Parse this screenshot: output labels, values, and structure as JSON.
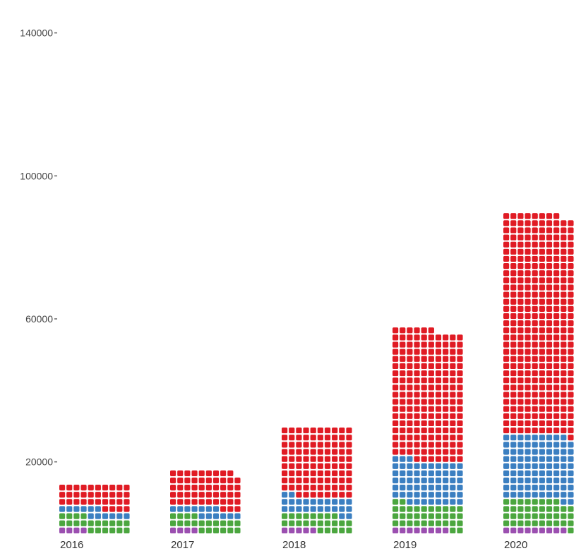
{
  "chart_data": {
    "type": "bar",
    "style": "stacked waffle (dot) bars",
    "title": "",
    "xlabel": "",
    "ylabel": "",
    "categories": [
      "2016",
      "2017",
      "2018",
      "2019",
      "2020"
    ],
    "ylim": [
      0,
      150000
    ],
    "yticks": [
      20000,
      60000,
      100000,
      140000
    ],
    "ytick_labels": [
      "20000",
      "60000",
      "100000",
      "140000"
    ],
    "grid": false,
    "legend": "none",
    "unit_per_dot": 200,
    "series": [
      {
        "color": "#9b4fb0",
        "values": [
          800,
          800,
          1000,
          1600,
          1800
        ]
      },
      {
        "color": "#4ba63f",
        "values": [
          4000,
          4000,
          4600,
          6800,
          7800
        ]
      },
      {
        "color": "#3b7fc1",
        "values": [
          2400,
          2600,
          4800,
          12200,
          18200
        ]
      },
      {
        "color": "#e01b24",
        "values": [
          6800,
          10400,
          19600,
          36600,
          61800
        ]
      }
    ]
  }
}
